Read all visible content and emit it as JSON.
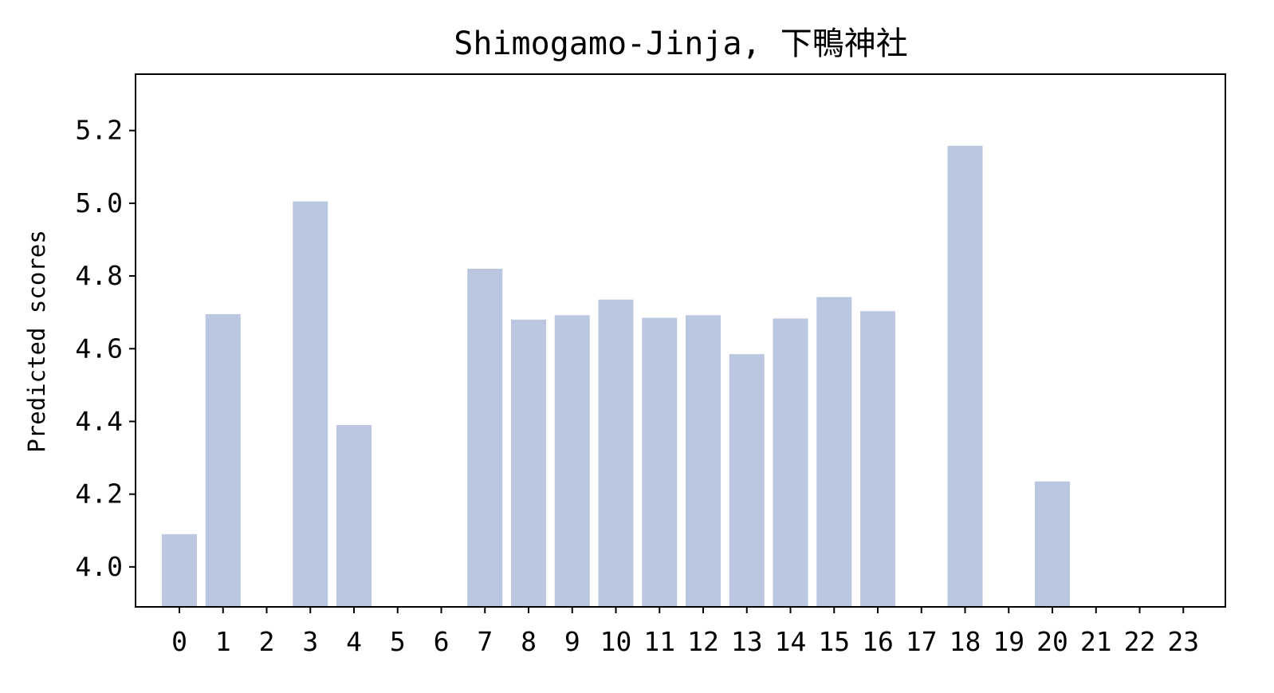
{
  "chart_data": {
    "type": "bar",
    "title": "Shimogamo-Jinja, 下鴨神社",
    "xlabel": "",
    "ylabel": "Predicted scores",
    "categories": [
      "0",
      "1",
      "2",
      "3",
      "4",
      "5",
      "6",
      "7",
      "8",
      "9",
      "10",
      "11",
      "12",
      "13",
      "14",
      "15",
      "16",
      "17",
      "18",
      "19",
      "20",
      "21",
      "22",
      "23"
    ],
    "values": [
      4.09,
      4.695,
      null,
      5.005,
      4.39,
      null,
      null,
      4.82,
      4.68,
      4.692,
      4.735,
      4.685,
      4.692,
      4.585,
      4.683,
      4.742,
      4.703,
      null,
      5.158,
      null,
      4.235,
      null,
      null,
      null
    ],
    "ylim": [
      3.89,
      5.355
    ],
    "yticks": [
      "4.0",
      "4.2",
      "4.4",
      "4.6",
      "4.8",
      "5.0",
      "5.2"
    ],
    "bar_color": "#bbc7e0",
    "grid": false,
    "legend": "none"
  }
}
